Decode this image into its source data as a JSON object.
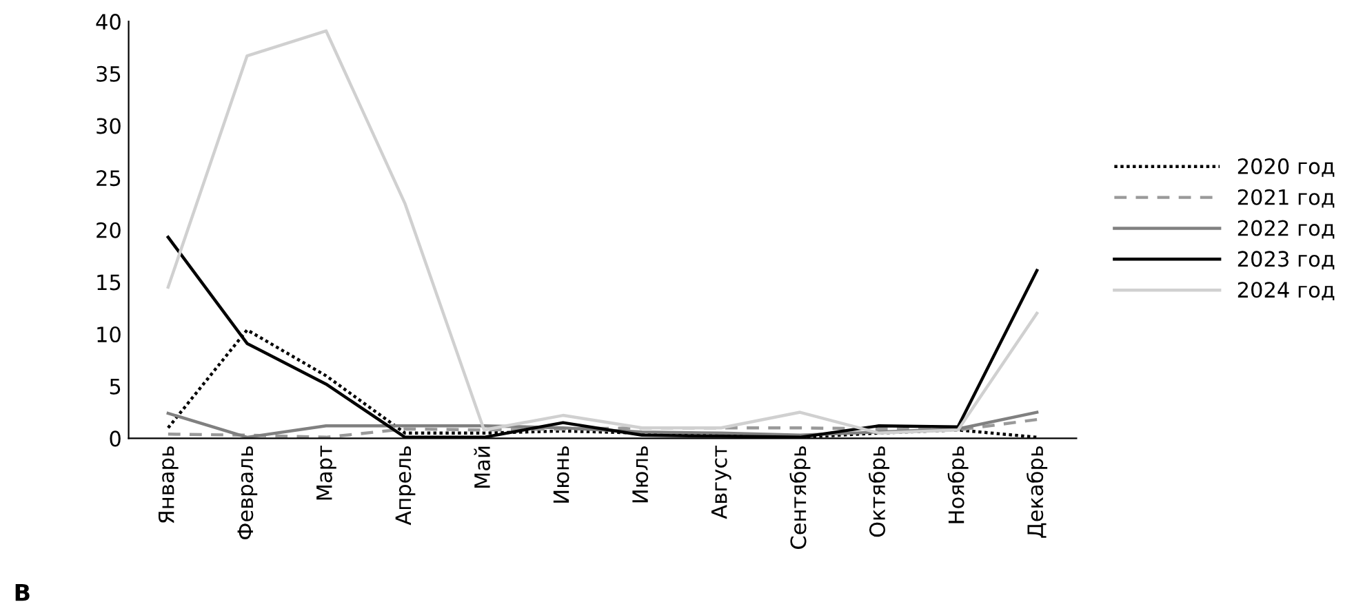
{
  "chart_data": {
    "type": "line",
    "categories": [
      "Январь",
      "Февраль",
      "Март",
      "Апрель",
      "Май",
      "Июнь",
      "Июль",
      "Август",
      "Сентябрь",
      "Октябрь",
      "Ноябрь",
      "Декабрь"
    ],
    "series": [
      {
        "name": "2020 год",
        "color": "#000000",
        "line_style": "dotted",
        "values": [
          1.0,
          10.4,
          6.0,
          0.5,
          0.5,
          0.7,
          0.5,
          0.4,
          0.1,
          0.5,
          0.8,
          0.1
        ]
      },
      {
        "name": "2021 год",
        "color": "#999999",
        "line_style": "dashed",
        "values": [
          0.4,
          0.3,
          0.1,
          0.9,
          0.8,
          0.9,
          1.0,
          1.0,
          1.0,
          0.9,
          0.8,
          1.8
        ]
      },
      {
        "name": "2022 год",
        "color": "#808080",
        "line_style": "solid",
        "values": [
          2.4,
          0.1,
          1.2,
          1.2,
          1.2,
          1.0,
          0.6,
          0.5,
          0.3,
          0.6,
          0.9,
          2.5
        ]
      },
      {
        "name": "2023 год",
        "color": "#000000",
        "line_style": "solid",
        "values": [
          19.3,
          9.1,
          5.2,
          0.1,
          0.1,
          1.5,
          0.3,
          0.2,
          0.1,
          1.2,
          1.1,
          16.1
        ]
      },
      {
        "name": "2024 год",
        "color": "#d0d0d0",
        "line_style": "solid",
        "values": [
          14.5,
          36.7,
          39.1,
          22.5,
          0.8,
          2.2,
          1.0,
          1.0,
          2.5,
          0.5,
          0.8,
          12.0
        ]
      }
    ],
    "ylim": [
      0,
      40
    ],
    "yticks": [
      0,
      5,
      10,
      15,
      20,
      25,
      30,
      35,
      40
    ],
    "grid": false,
    "legend": "right",
    "marker": "none",
    "annotations": [
      "B"
    ]
  }
}
